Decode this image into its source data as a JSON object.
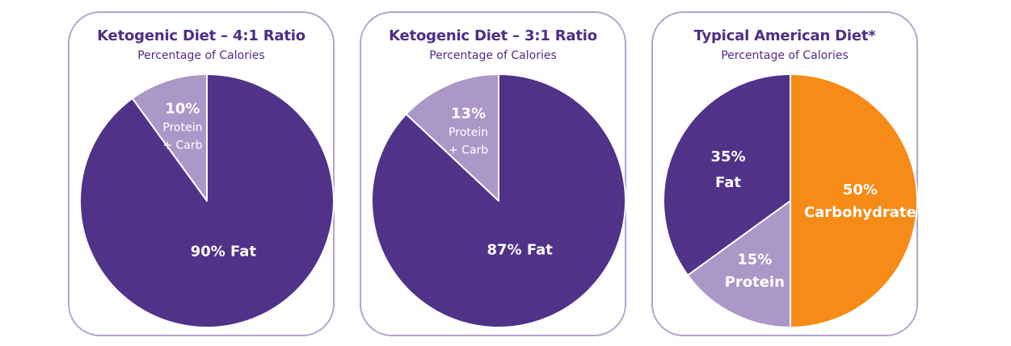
{
  "colors": {
    "fat": "#503288",
    "protein_carb": "#ab98c8",
    "carbohydrate": "#f68b17",
    "border": "#b5a3cc",
    "title": "#4f2d87"
  },
  "chart_data": [
    {
      "type": "pie",
      "title": "Ketogenic Diet – 4:1 Ratio",
      "subtitle": "Percentage of Calories",
      "slices": [
        {
          "name": "Protein + Carb",
          "value": 10,
          "color": "#ab98c8",
          "label_lines": [
            "10%",
            "Protein",
            "+ Carb"
          ]
        },
        {
          "name": "Fat",
          "value": 90,
          "color": "#503288",
          "label_lines": [
            "90% Fat"
          ]
        }
      ]
    },
    {
      "type": "pie",
      "title": "Ketogenic Diet – 3:1 Ratio",
      "subtitle": "Percentage of Calories",
      "slices": [
        {
          "name": "Protein + Carb",
          "value": 13,
          "color": "#ab98c8",
          "label_lines": [
            "13%",
            "Protein",
            "+ Carb"
          ]
        },
        {
          "name": "Fat",
          "value": 87,
          "color": "#503288",
          "label_lines": [
            "87% Fat"
          ]
        }
      ]
    },
    {
      "type": "pie",
      "title": "Typical American Diet*",
      "subtitle": "Percentage of Calories",
      "slices": [
        {
          "name": "Carbohydrate",
          "value": 50,
          "color": "#f68b17",
          "label_lines": [
            "50%",
            "Carbohydrate"
          ]
        },
        {
          "name": "Protein",
          "value": 15,
          "color": "#ab98c8",
          "label_lines": [
            "15%",
            "Protein"
          ]
        },
        {
          "name": "Fat",
          "value": 35,
          "color": "#503288",
          "label_lines": [
            "35%",
            "Fat"
          ]
        }
      ]
    }
  ]
}
